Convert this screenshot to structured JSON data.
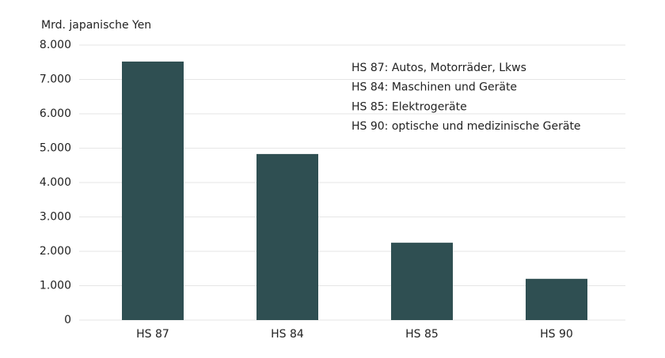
{
  "chart_data": {
    "type": "bar",
    "y_axis_label": "Mrd. japanische Yen",
    "categories": [
      "HS 87",
      "HS 84",
      "HS 85",
      "HS 90"
    ],
    "values": [
      7520,
      4830,
      2250,
      1200
    ],
    "color": "#2f4f52",
    "ylim": [
      0,
      8000
    ],
    "yticks": [
      0,
      {
        "value": 1000,
        "label": "1.000"
      },
      {
        "value": 2000,
        "label": "2.000"
      },
      {
        "value": 3000,
        "label": "3.000"
      },
      {
        "value": 4000,
        "label": "4.000"
      },
      {
        "value": 5000,
        "label": "5.000"
      },
      {
        "value": 6000,
        "label": "6.000"
      },
      {
        "value": 7000,
        "label": "7.000"
      },
      {
        "value": 8000,
        "label": "8.000"
      }
    ],
    "grid": true,
    "annotations": [
      "HS 87: Autos, Motorräder, Lkws",
      "HS 84: Maschinen und Geräte",
      "HS 85: Elektrogeräte",
      "HS 90: optische und medizinische Geräte"
    ]
  }
}
